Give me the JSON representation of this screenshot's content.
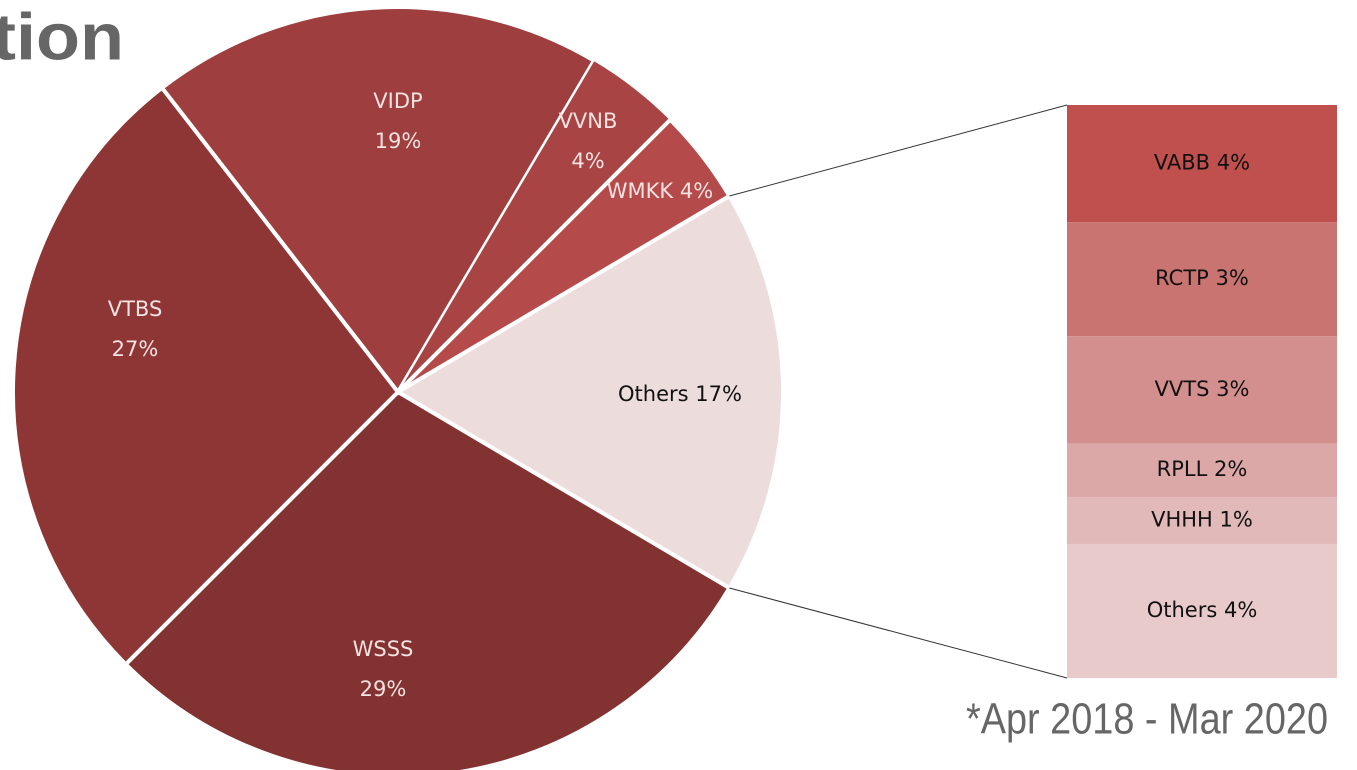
{
  "chart_data": [
    {
      "type": "pie",
      "title": "tion",
      "footnote": "*Apr 2018 - Mar 2020",
      "categories": [
        "Others",
        "WSSS",
        "VTBS",
        "VIDP",
        "VVNB",
        "WMKK"
      ],
      "values": [
        17,
        29,
        27,
        19,
        4,
        4
      ],
      "value_labels": [
        "17%",
        "29%",
        "27%",
        "19%",
        "4%",
        "4%"
      ],
      "colors": [
        "#ecdcdc",
        "#833232",
        "#8e3636",
        "#9e3e3e",
        "#a84444",
        "#b54a4a"
      ]
    },
    {
      "type": "stacked_bar",
      "categories": [
        "VABB",
        "RCTP",
        "VVTS",
        "RPLL",
        "VHHH",
        "Others"
      ],
      "values": [
        3.5,
        3.4,
        3.2,
        1.6,
        1.4,
        4.0
      ],
      "value_labels": [
        "4%",
        "3%",
        "3%",
        "2%",
        "1%",
        "4%"
      ],
      "colors": [
        "#c0504d",
        "#c97471",
        "#d38f8e",
        "#dba8a7",
        "#e1b9b9",
        "#e9caca"
      ]
    }
  ]
}
